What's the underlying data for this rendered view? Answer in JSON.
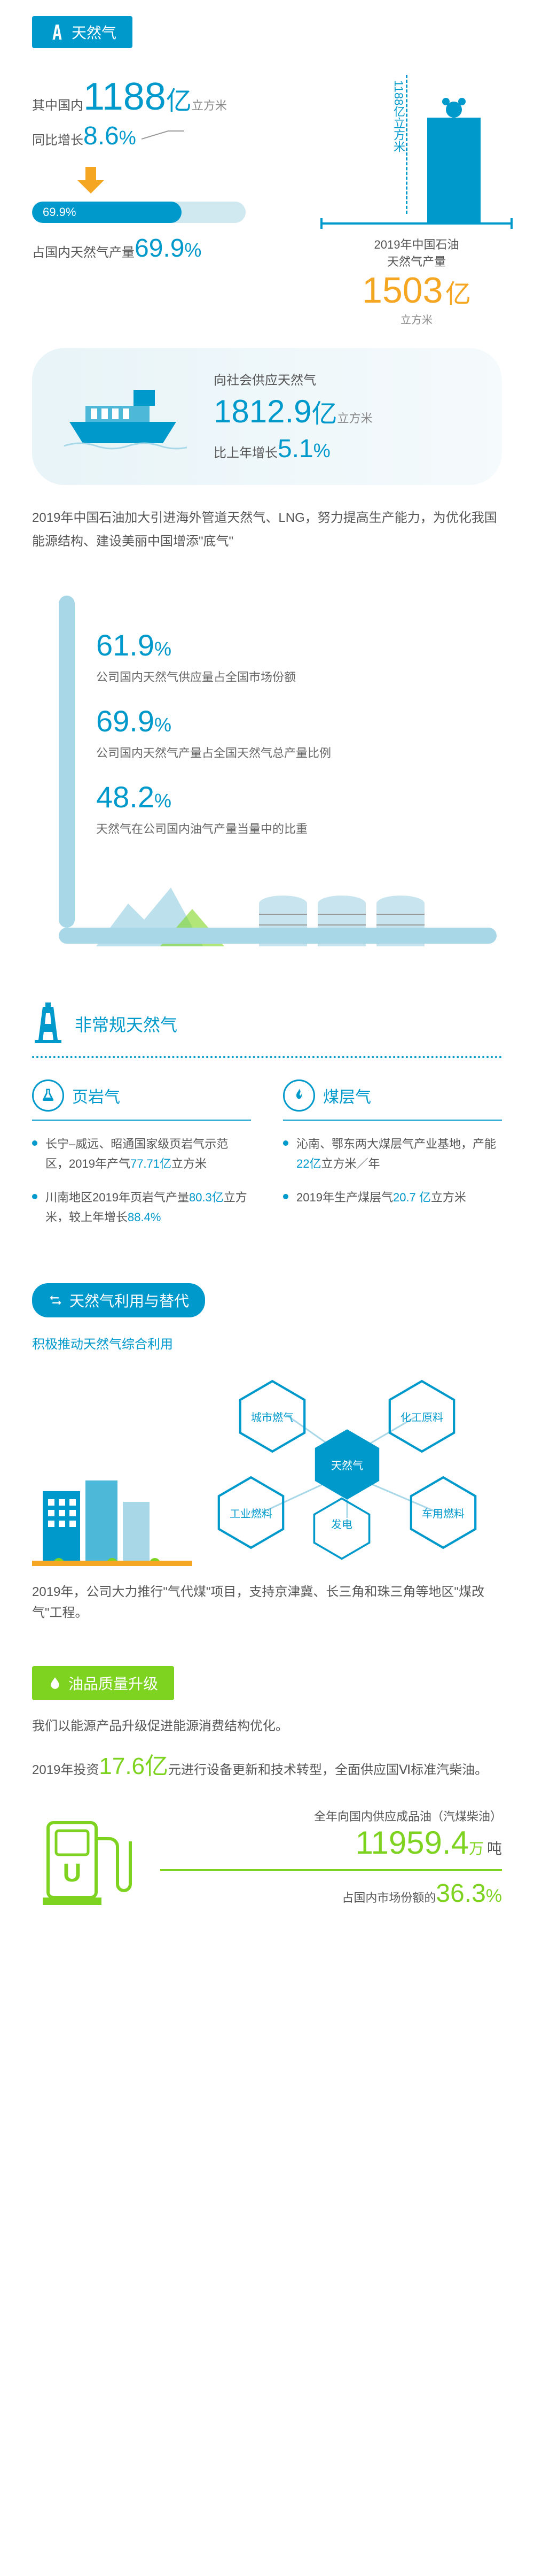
{
  "section1": {
    "title": "天然气",
    "domestic_prefix": "其中国内",
    "domestic_value": "1188",
    "domestic_unit_big": "亿",
    "domestic_unit_sm": "立方米",
    "growth_prefix": "同比增长",
    "growth_value": "8.6",
    "percent": "%",
    "bar_value": "69.9%",
    "bar_fill_pct": 69.9,
    "share_prefix": "占国内天然气产量",
    "share_value": "69.9",
    "vlabel": "1188亿立方米",
    "prod_line1": "2019年中国石油",
    "prod_line2": "天然气产量",
    "prod_value": "1503",
    "prod_big": "亿",
    "prod_unit": "立方米",
    "ship_l1": "向社会供应天然气",
    "ship_value": "1812.9",
    "ship_big": "亿",
    "ship_unit": "立方米",
    "ship_growth_prefix": "比上年增长",
    "ship_growth": "5.1",
    "desc": "2019年中国石油加大引进海外管道天然气、LNG，努力提高生产能力，为优化我国能源结构、建设美丽中国增添\"底气\""
  },
  "section2": {
    "stats": [
      {
        "value": "61.9",
        "desc": "公司国内天然气供应量占全国市场份额"
      },
      {
        "value": "69.9",
        "desc": "公司国内天然气产量占全国天然气总产量比例"
      },
      {
        "value": "48.2",
        "desc": "天然气在公司国内油气产量当量中的比重"
      }
    ],
    "percent": "%"
  },
  "section3": {
    "title": "非常规天然气",
    "left_title": "页岩气",
    "right_title": "煤层气",
    "left_items": [
      {
        "pre": "长宁–威远、昭通国家级页岩气示范区，2019年产气",
        "num": "77.71亿",
        "post": "立方米"
      },
      {
        "pre": "川南地区2019年页岩气产量",
        "num": "80.3亿",
        "post": "立方米，较上年增长",
        "num2": "88.4%"
      }
    ],
    "right_items": [
      {
        "pre": "沁南、鄂东两大煤层气产业基地，产能",
        "num": "22亿",
        "post": "立方米／年"
      },
      {
        "pre": "2019年生产煤层气",
        "num": "20.7 亿",
        "post": "立方米"
      }
    ]
  },
  "section4": {
    "title": "天然气利用与替代",
    "subtitle": "积极推动天然气综合利用",
    "center": "天然气",
    "nodes": {
      "tl": "城市燃气",
      "tr": "化工原料",
      "bl": "工业燃料",
      "bm": "发电",
      "br": "车用燃料"
    },
    "desc": "2019年，公司大力推行\"气代煤\"项目，支持京津冀、长三角和珠三角等地区\"煤改气\"工程。"
  },
  "section5": {
    "title": "油品质量升级",
    "line1": "我们以能源产品升级促进能源消费结构优化。",
    "line2_pre": "2019年投资",
    "line2_num": "17.6亿",
    "line2_post": "元进行设备更新和技术转型，全面供应国Ⅵ标准汽柴油。",
    "stat1_label": "全年向国内供应成品油（汽煤柴油）",
    "stat1_value": "11959.4",
    "stat1_unit": "万",
    "stat1_unit2": "吨",
    "stat2_pre": "占国内市场份额的",
    "stat2_value": "36.3",
    "percent": "%"
  },
  "colors": {
    "primary": "#0099cc",
    "orange": "#f5a623",
    "green": "#7ed321",
    "lightblue": "#a8d8e8",
    "bg_card": "#e8f4f8"
  }
}
